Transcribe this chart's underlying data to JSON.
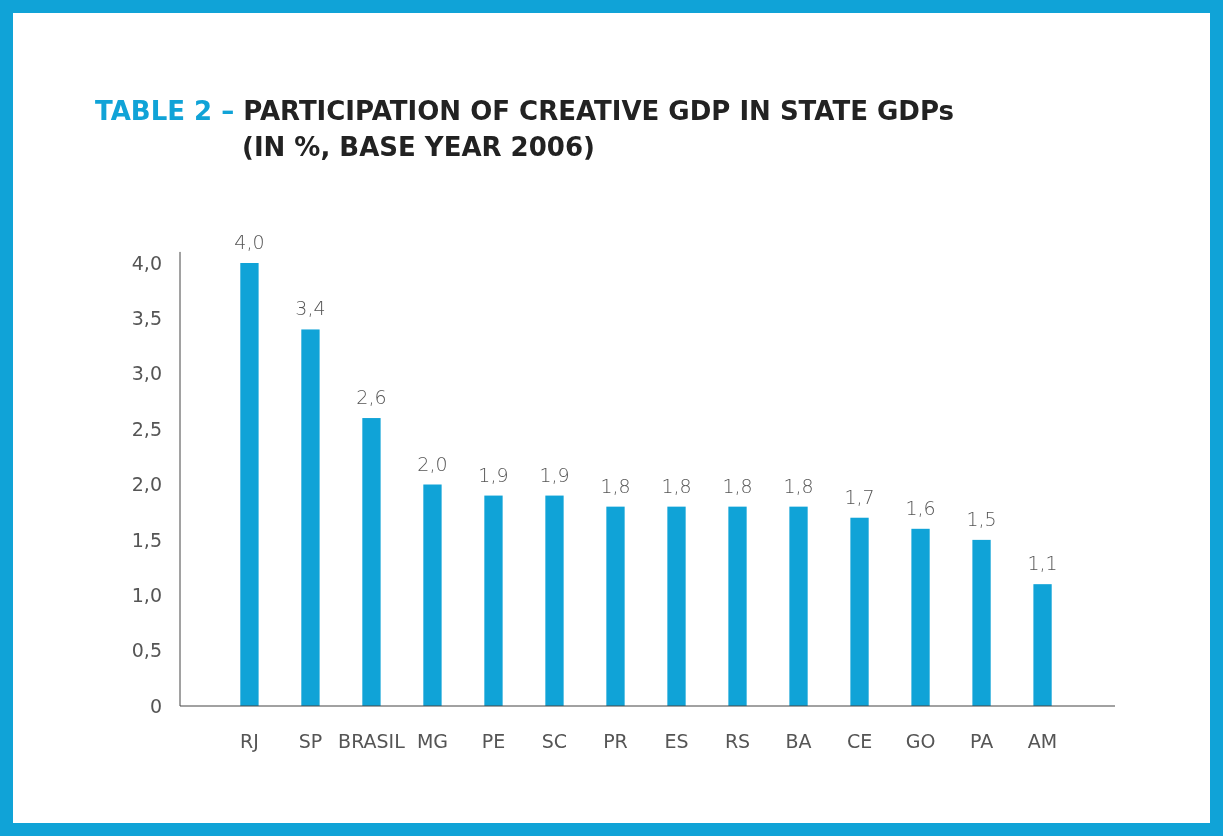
{
  "chart_data": {
    "type": "bar",
    "title": "TABLE 2 – PARTICIPATION OF CREATIVE GDP IN STATE GDPs (IN %, BASE YEAR 2006)",
    "categories": [
      "RJ",
      "SP",
      "BRASIL",
      "MG",
      "PE",
      "SC",
      "PR",
      "ES",
      "RS",
      "BA",
      "CE",
      "GO",
      "PA",
      "AM"
    ],
    "values": [
      4.0,
      3.4,
      2.6,
      2.0,
      1.9,
      1.9,
      1.8,
      1.8,
      1.8,
      1.8,
      1.7,
      1.6,
      1.5,
      1.1
    ],
    "value_labels": [
      "4,0",
      "3,4",
      "2,6",
      "2,0",
      "1,9",
      "1,9",
      "1,8",
      "1,8",
      "1,8",
      "1,8",
      "1,7",
      "1,6",
      "1,5",
      "1,1"
    ],
    "color": "#10a3d7",
    "ylim": [
      0,
      4.1
    ],
    "yticks": [
      {
        "value": 0,
        "label": "0"
      },
      {
        "value": 0.5,
        "label": "0,5"
      },
      {
        "value": 1,
        "label": "1,0"
      },
      {
        "value": 1.5,
        "label": "1,5"
      },
      {
        "value": 2,
        "label": "2,0"
      },
      {
        "value": 2.5,
        "label": "2,5"
      },
      {
        "value": 3,
        "label": "3,0"
      },
      {
        "value": 3.5,
        "label": "3,5"
      },
      {
        "value": 4,
        "label": "4,0"
      }
    ],
    "grid": false
  }
}
